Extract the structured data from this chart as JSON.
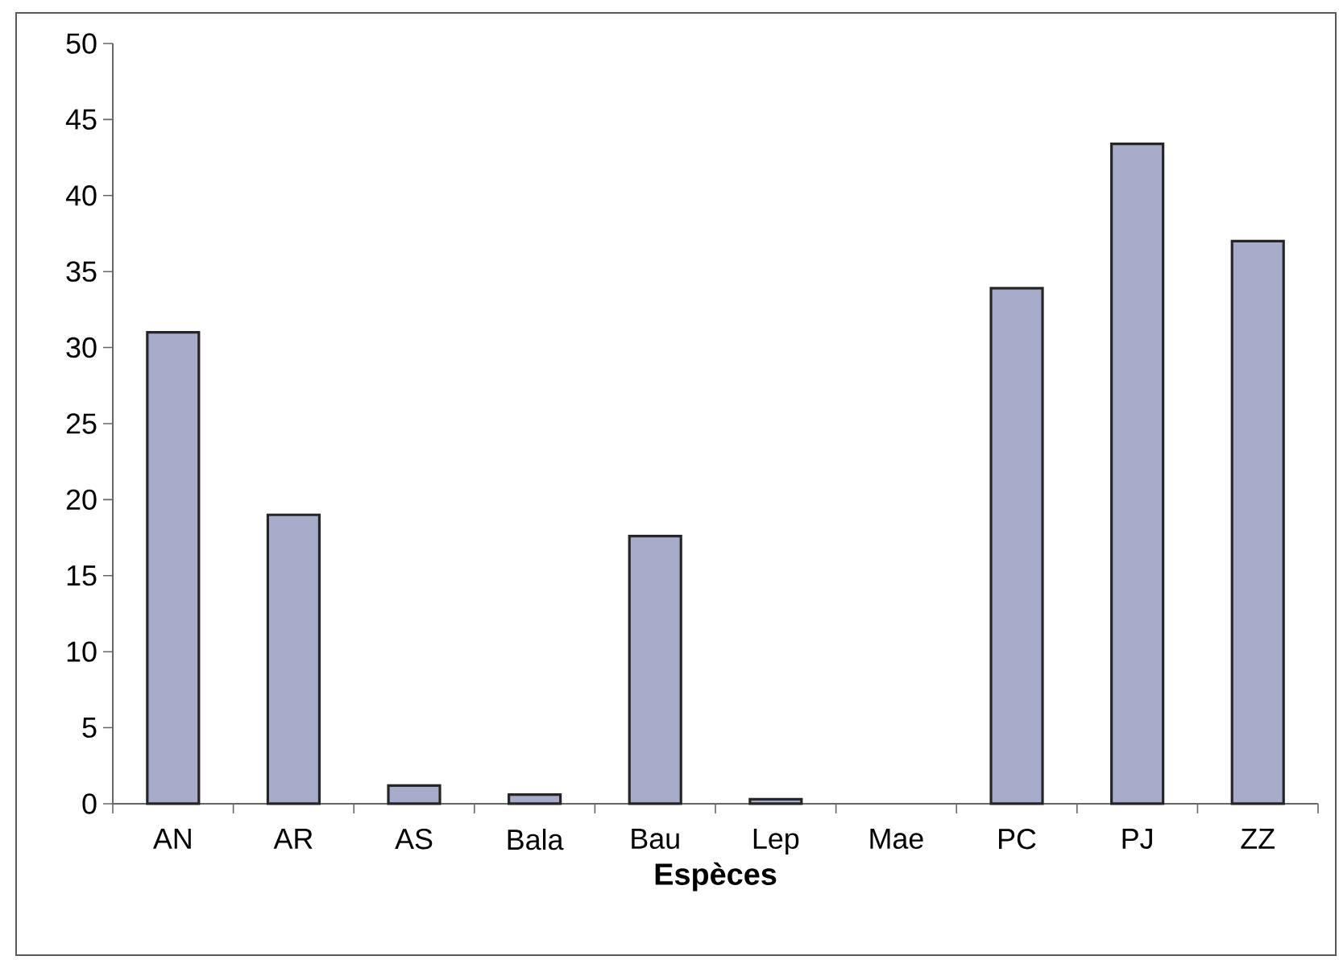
{
  "chart_data": {
    "type": "bar",
    "xlabel": "Espèces",
    "categories": [
      "AN",
      "AR",
      "AS",
      "Bala",
      "Bau",
      "Lep",
      "Mae",
      "PC",
      "PJ",
      "ZZ"
    ],
    "values": [
      31.0,
      19.0,
      1.2,
      0.6,
      17.6,
      0.3,
      null,
      33.9,
      43.4,
      37.0
    ],
    "color": "#a8accb",
    "ylim": [
      0,
      50
    ],
    "yticks": [
      0,
      5,
      10,
      15,
      20,
      25,
      30,
      35,
      40,
      45,
      50
    ],
    "grid": false
  }
}
